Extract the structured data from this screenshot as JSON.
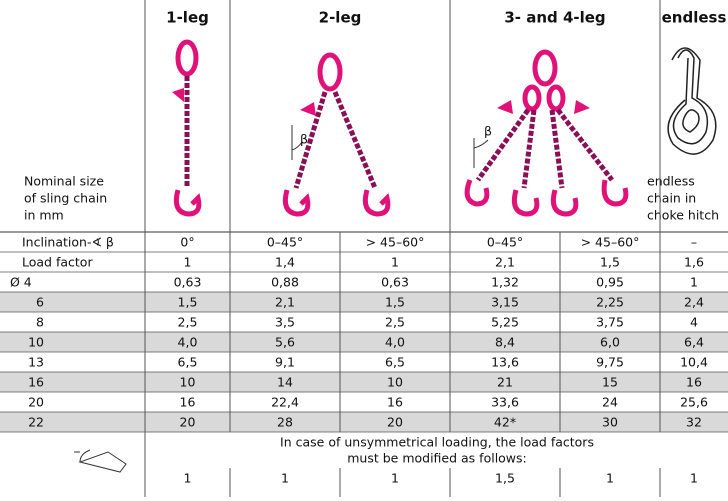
{
  "header": {
    "columns": [
      "1-leg",
      "2-leg",
      "3- and 4-leg",
      "endless"
    ]
  },
  "illustration_labels": {
    "nominal_size": [
      "Nominal size",
      "of sling chain",
      "in mm"
    ],
    "beta_2leg": "β",
    "beta_3leg": "β",
    "endless": [
      "endless",
      "chain in",
      "choke hitch"
    ]
  },
  "table": {
    "rows": [
      [
        "Inclination-∢ β",
        "0°",
        "0–45°",
        "> 45–60°",
        "0–45°",
        "> 45–60°",
        "–"
      ],
      [
        "Load factor",
        "1",
        "1,4",
        "1",
        "2,1",
        "1,5",
        "1,6"
      ],
      [
        "Ø  4",
        "0,63",
        "0,88",
        "0,63",
        "1,32",
        "0,95",
        "1"
      ],
      [
        "6",
        "1,5",
        "2,1",
        "1,5",
        "3,15",
        "2,25",
        "2,4"
      ],
      [
        "8",
        "2,5",
        "3,5",
        "2,5",
        "5,25",
        "3,75",
        "4"
      ],
      [
        "10",
        "4,0",
        "5,6",
        "4,0",
        "8,4",
        "6,0",
        "6,4"
      ],
      [
        "13",
        "6,5",
        "9,1",
        "6,5",
        "13,6",
        "9,75",
        "10,4"
      ],
      [
        "16",
        "10",
        "14",
        "10",
        "21",
        "15",
        "16"
      ],
      [
        "20",
        "16",
        "22,4",
        "16",
        "33,6",
        "24",
        "25,6"
      ],
      [
        "22",
        "20",
        "28",
        "20",
        "42*",
        "30",
        "32"
      ]
    ]
  },
  "note": {
    "lines": [
      "In case of unsymmetrical loading, the load factors",
      "must be modified as follows:"
    ],
    "factors": [
      "1",
      "1",
      "1",
      "1,5",
      "1",
      "1"
    ]
  }
}
